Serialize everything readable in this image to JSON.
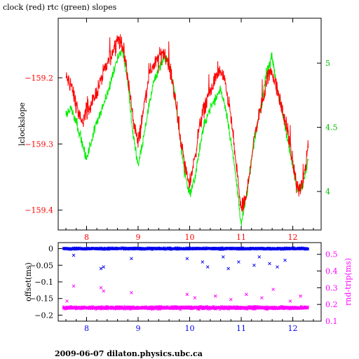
{
  "title": "clock (red) rtc (green) slopes",
  "footer": "2009-06-07  dilaton.physics.ubc.ca",
  "colors": {
    "clock": "#ff0000",
    "rtc": "#00ee00",
    "offset": "#0000ee",
    "rndtrip": "#ff00ff",
    "axis": "#000000"
  },
  "chart_data": [
    {
      "type": "line",
      "ylabel_left": "lclockslope",
      "ylabel_right": "",
      "xlim": [
        7.45,
        12.55
      ],
      "ylim_left": [
        -159.43,
        -159.11
      ],
      "ylim_right": [
        3.7,
        5.35
      ],
      "x_ticks": [
        "8",
        "9",
        "10",
        "11",
        "12"
      ],
      "x_tick_values": [
        8,
        9,
        10,
        11,
        12
      ],
      "y_left_ticks": [
        "-159.2",
        "-159.3",
        "-159.4"
      ],
      "y_left_tick_values": [
        -159.2,
        -159.3,
        -159.4
      ],
      "y_right_ticks": [
        "5",
        "4.5",
        "4"
      ],
      "y_right_tick_values": [
        5,
        4.5,
        4
      ],
      "series": [
        {
          "name": "clock",
          "axis": "left",
          "x": [
            7.6,
            7.7,
            7.8,
            7.9,
            8.0,
            8.1,
            8.2,
            8.3,
            8.4,
            8.5,
            8.6,
            8.7,
            8.8,
            8.9,
            9.0,
            9.1,
            9.2,
            9.3,
            9.4,
            9.5,
            9.6,
            9.7,
            9.8,
            9.9,
            10.0,
            10.1,
            10.2,
            10.3,
            10.4,
            10.5,
            10.6,
            10.7,
            10.8,
            10.9,
            11.0,
            11.1,
            11.2,
            11.3,
            11.4,
            11.5,
            11.6,
            11.7,
            11.8,
            11.9,
            12.0,
            12.1,
            12.2,
            12.3
          ],
          "y": [
            -159.2,
            -159.21,
            -159.24,
            -159.27,
            -159.25,
            -159.24,
            -159.22,
            -159.2,
            -159.18,
            -159.16,
            -159.14,
            -159.15,
            -159.2,
            -159.26,
            -159.3,
            -159.25,
            -159.2,
            -159.18,
            -159.17,
            -159.16,
            -159.18,
            -159.22,
            -159.28,
            -159.33,
            -159.36,
            -159.32,
            -159.27,
            -159.24,
            -159.22,
            -159.2,
            -159.19,
            -159.21,
            -159.26,
            -159.33,
            -159.4,
            -159.38,
            -159.32,
            -159.27,
            -159.24,
            -159.2,
            -159.19,
            -159.22,
            -159.25,
            -159.28,
            -159.33,
            -159.37,
            -159.36,
            -159.3
          ]
        },
        {
          "name": "rtc",
          "axis": "right",
          "x": [
            7.6,
            7.7,
            7.8,
            7.9,
            8.0,
            8.1,
            8.2,
            8.3,
            8.4,
            8.5,
            8.6,
            8.7,
            8.8,
            8.9,
            9.0,
            9.1,
            9.2,
            9.3,
            9.4,
            9.5,
            9.6,
            9.7,
            9.8,
            9.9,
            10.0,
            10.1,
            10.2,
            10.3,
            10.4,
            10.5,
            10.6,
            10.7,
            10.8,
            10.9,
            11.0,
            11.1,
            11.2,
            11.3,
            11.4,
            11.5,
            11.6,
            11.7,
            11.8,
            11.9,
            12.0,
            12.1,
            12.2,
            12.3
          ],
          "y": [
            4.6,
            4.65,
            4.55,
            4.4,
            4.25,
            4.4,
            4.55,
            4.65,
            4.75,
            4.9,
            5.05,
            5.1,
            4.85,
            4.45,
            4.2,
            4.4,
            4.65,
            4.85,
            4.95,
            5.05,
            5.0,
            4.8,
            4.45,
            4.15,
            3.98,
            4.1,
            4.35,
            4.55,
            4.65,
            4.72,
            4.8,
            4.65,
            4.4,
            4.1,
            3.75,
            3.95,
            4.25,
            4.5,
            4.7,
            4.95,
            5.05,
            4.8,
            4.6,
            4.4,
            4.2,
            4.0,
            4.05,
            4.25
          ]
        }
      ]
    },
    {
      "type": "scatter",
      "ylabel_left": "offset(ms)",
      "ylabel_right": "rnd-trip(ms)",
      "xlim": [
        7.45,
        12.55
      ],
      "ylim_left": [
        -0.218,
        0.018
      ],
      "ylim_right": [
        0.1,
        0.57
      ],
      "x_ticks": [
        "8",
        "9",
        "10",
        "11",
        "12"
      ],
      "x_tick_values": [
        8,
        9,
        10,
        11,
        12
      ],
      "y_left_ticks": [
        "0",
        "-0.05",
        "-0.1",
        "-0.15",
        "-0.2"
      ],
      "y_left_tick_values": [
        0,
        -0.05,
        -0.1,
        -0.15,
        -0.2
      ],
      "y_right_ticks": [
        "0.5",
        "0.4",
        "0.3",
        "0.2",
        "0.1"
      ],
      "y_right_tick_values": [
        0.5,
        0.4,
        0.3,
        0.2,
        0.1
      ],
      "series": [
        {
          "name": "offset",
          "axis": "left",
          "x_range": [
            7.55,
            12.3
          ],
          "baseline": 0.0,
          "spread": 0.004,
          "outliers_x": [
            7.75,
            8.28,
            8.33,
            8.87,
            9.95,
            10.25,
            10.35,
            10.65,
            10.75,
            10.95,
            11.25,
            11.35,
            11.55,
            11.7,
            11.85
          ],
          "outliers_y": [
            -0.02,
            -0.06,
            -0.055,
            -0.03,
            -0.03,
            -0.04,
            -0.055,
            -0.025,
            -0.06,
            -0.04,
            -0.05,
            -0.025,
            -0.045,
            -0.055,
            -0.035
          ]
        },
        {
          "name": "rnd-trip",
          "axis": "right",
          "x_range": [
            7.55,
            12.3
          ],
          "baseline": 0.18,
          "spread": 0.012,
          "outliers_x": [
            7.62,
            7.75,
            8.28,
            8.33,
            8.87,
            9.95,
            10.1,
            10.5,
            10.8,
            11.1,
            11.4,
            11.62,
            11.95,
            12.15
          ],
          "outliers_y": [
            0.22,
            0.31,
            0.3,
            0.28,
            0.27,
            0.26,
            0.24,
            0.25,
            0.23,
            0.26,
            0.24,
            0.29,
            0.22,
            0.25
          ]
        }
      ]
    }
  ]
}
